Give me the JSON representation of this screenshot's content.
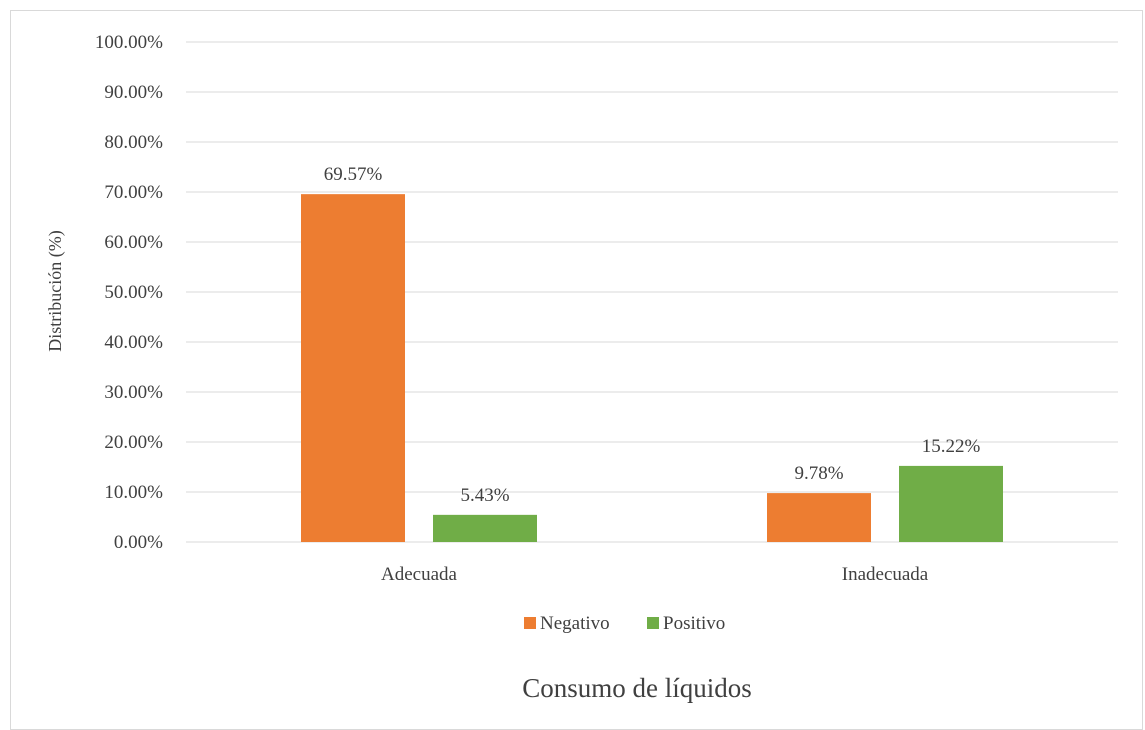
{
  "chart_data": {
    "type": "bar",
    "categories": [
      "Adecuada",
      "Inadecuada"
    ],
    "series": [
      {
        "name": "Negativo",
        "values": [
          69.57,
          9.78
        ],
        "color": "#ED7D31"
      },
      {
        "name": "Positivo",
        "values": [
          5.43,
          15.22
        ],
        "color": "#70AD47"
      }
    ],
    "data_labels": [
      [
        "69.57%",
        "9.78%"
      ],
      [
        "5.43%",
        "15.22%"
      ]
    ],
    "ylabel": "Distribución (%)",
    "xlabel": "Consumo de líquidos",
    "ylim": [
      0,
      100
    ],
    "ytick_step": 10,
    "ytick_labels": [
      "0.00%",
      "10.00%",
      "20.00%",
      "30.00%",
      "40.00%",
      "50.00%",
      "60.00%",
      "70.00%",
      "80.00%",
      "90.00%",
      "100.00%"
    ],
    "grid": true,
    "legend_position": "bottom",
    "gridline_color": "#d9d9d9"
  }
}
